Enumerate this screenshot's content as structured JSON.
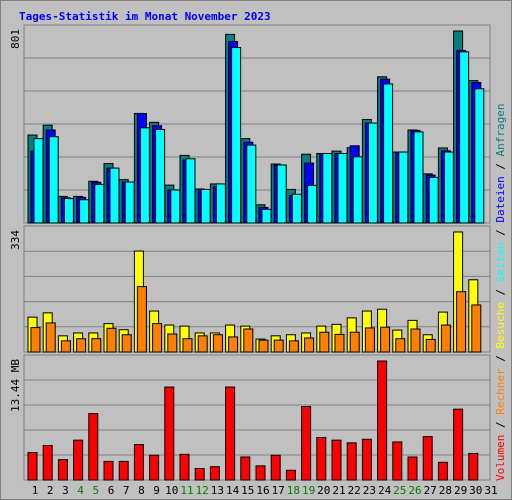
{
  "chart_data": {
    "type": "bar",
    "title": "Tages-Statistik im Monat November 2023",
    "days": [
      "1",
      "2",
      "3",
      "4",
      "5",
      "6",
      "7",
      "8",
      "9",
      "10",
      "11",
      "12",
      "13",
      "14",
      "15",
      "16",
      "17",
      "18",
      "19",
      "20",
      "21",
      "22",
      "23",
      "24",
      "25",
      "26",
      "27",
      "28",
      "29",
      "30",
      "31"
    ],
    "weekend_days": [
      "4",
      "5",
      "11",
      "12",
      "18",
      "19",
      "25",
      "26"
    ],
    "panels": [
      {
        "axis_max_label": "801",
        "ymax": 801,
        "series": [
          {
            "name": "Anfragen",
            "color": "#008080",
            "values": [
              367,
              408,
              111,
              111,
              174,
              248,
              181,
              457,
              420,
              158,
              282,
              142,
              163,
              787,
              352,
              76,
              246,
              140,
              287,
              290,
              300,
              314,
              432,
              610,
              296,
              388,
              205,
              313,
              801,
              594,
              0
            ]
          },
          {
            "name": "Dateien",
            "color": "#0000ff",
            "values": [
              300,
              388,
              105,
              107,
              170,
              229,
              171,
              457,
              406,
              138,
              263,
              140,
              153,
              757,
              337,
              65,
              242,
              115,
              250,
              290,
              290,
              322,
              417,
              600,
              296,
              386,
              200,
              301,
              720,
              586,
              0
            ]
          },
          {
            "name": "Seiten",
            "color": "#00ffff",
            "values": [
              352,
              360,
              102,
              97,
              161,
              229,
              171,
              397,
              390,
              138,
              268,
              140,
              163,
              732,
              325,
              57,
              242,
              120,
              157,
              290,
              290,
              276,
              417,
              580,
              296,
              380,
              190,
              296,
              714,
              560,
              0
            ]
          }
        ]
      },
      {
        "axis_max_label": "334",
        "ymax": 334,
        "series": [
          {
            "name": "Besuche",
            "color": "#ffff00",
            "values": [
              97,
              109,
              45,
              53,
              53,
              79,
              62,
              281,
              114,
              75,
              72,
              53,
              53,
              75,
              72,
              36,
              45,
              48,
              53,
              72,
              77,
              95,
              114,
              119,
              61,
              88,
              48,
              111,
              334,
              201,
              0
            ]
          },
          {
            "name": "Rechner",
            "color": "#ff8000",
            "values": [
              68,
              81,
              31,
              37,
              37,
              66,
              48,
              182,
              79,
              50,
              37,
              45,
              48,
              42,
              64,
              33,
              33,
              31,
              39,
              55,
              49,
              55,
              67,
              69,
              37,
              64,
              35,
              75,
              168,
              131,
              0
            ]
          }
        ]
      },
      {
        "axis_max_label": "13.44 MB",
        "ymax": 13.44,
        "series": [
          {
            "name": "Volumen",
            "color": "#ff0000",
            "values": [
              3.1,
              3.9,
              2.3,
              4.5,
              7.5,
              2.1,
              2.1,
              4.0,
              2.8,
              10.5,
              2.9,
              1.3,
              1.5,
              10.5,
              2.6,
              1.6,
              2.8,
              1.1,
              8.3,
              4.8,
              4.5,
              4.2,
              4.6,
              13.44,
              4.3,
              2.6,
              4.9,
              2.0,
              8.0,
              3.0,
              0
            ]
          }
        ]
      }
    ],
    "legend": [
      {
        "label": "Volumen",
        "color": "#ff0000"
      },
      {
        "label": "Rechner",
        "color": "#ff8000"
      },
      {
        "label": "Besuche",
        "color": "#ffff00"
      },
      {
        "label": "Seiten",
        "color": "#00ffff"
      },
      {
        "label": "Dateien",
        "color": "#0000ff"
      },
      {
        "label": "Anfragen",
        "color": "#008080"
      }
    ],
    "legend_separator": " / ",
    "colors": {
      "background": "#c0c0c0",
      "title": "#0000ff",
      "axis_text": "#000000",
      "weekday": "#000000",
      "weekend": "#008000",
      "grid": "#808080"
    }
  }
}
